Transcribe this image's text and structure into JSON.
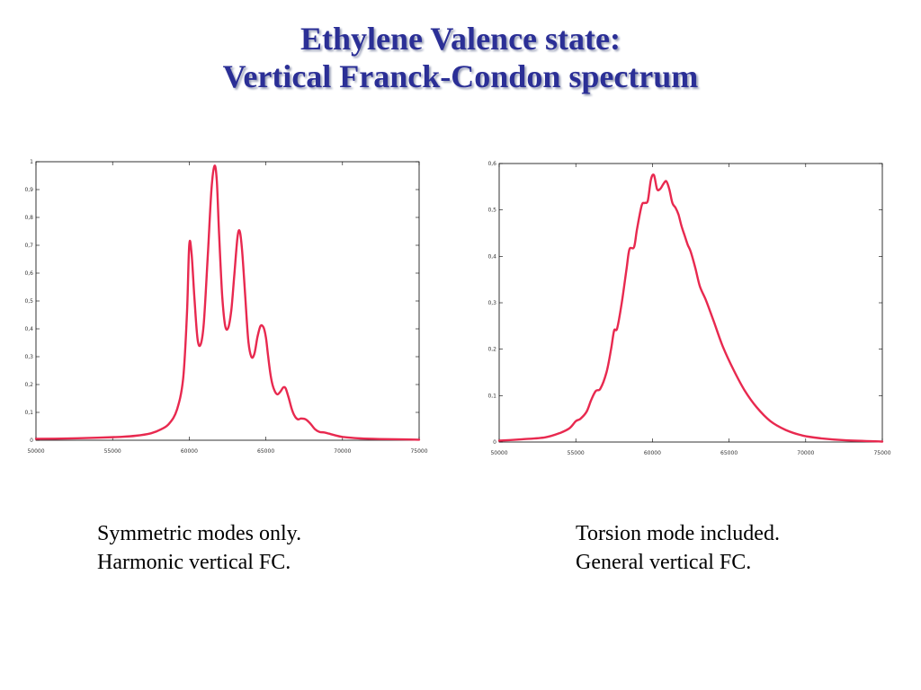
{
  "slide": {
    "title_line1": "Ethylene Valence state:",
    "title_line2": "Vertical Franck-Condon spectrum",
    "title_color": "#2b2f96",
    "captions": {
      "left_line1": "Symmetric modes only.",
      "left_line2": "Harmonic vertical FC.",
      "right_line1": "Torsion mode included.",
      "right_line2": "General vertical FC."
    }
  },
  "chart_data": [
    {
      "type": "line",
      "line_color": "#e8294f",
      "xlim": [
        50000,
        75000
      ],
      "ylim": [
        0,
        1
      ],
      "xticks": [
        50000,
        55000,
        60000,
        65000,
        70000,
        75000
      ],
      "xtick_labels": [
        "50000",
        "55000",
        "60000",
        "65000",
        "70000",
        "75000"
      ],
      "yticks": [
        0,
        0.1,
        0.2,
        0.3,
        0.4,
        0.5,
        0.6,
        0.7,
        0.8,
        0.9,
        1
      ],
      "ytick_labels": [
        "0",
        "0,1",
        "0,2",
        "0,3",
        "0,4",
        "0,5",
        "0,6",
        "0,7",
        "0,8",
        "0,9",
        "1"
      ],
      "grid": false,
      "series": [
        {
          "x": [
            50000,
            52000,
            54000,
            55500,
            56500,
            57500,
            58200,
            58700,
            59200,
            59600,
            59850,
            60000,
            60150,
            60350,
            60550,
            60750,
            60950,
            61200,
            61450,
            61650,
            61800,
            61950,
            62150,
            62350,
            62550,
            62750,
            62950,
            63150,
            63300,
            63450,
            63650,
            63850,
            64050,
            64250,
            64450,
            64650,
            64850,
            65000,
            65150,
            65350,
            65550,
            65750,
            65950,
            66150,
            66300,
            66500,
            66700,
            66900,
            67100,
            67300,
            67600,
            67900,
            68200,
            68500,
            68800,
            69100,
            69500,
            70000,
            71000,
            72000,
            73000,
            74000,
            75000
          ],
          "y": [
            0.005,
            0.006,
            0.009,
            0.012,
            0.016,
            0.025,
            0.04,
            0.06,
            0.11,
            0.22,
            0.45,
            0.7,
            0.67,
            0.5,
            0.36,
            0.345,
            0.42,
            0.65,
            0.9,
            0.985,
            0.93,
            0.74,
            0.52,
            0.41,
            0.405,
            0.47,
            0.6,
            0.73,
            0.75,
            0.68,
            0.52,
            0.36,
            0.3,
            0.31,
            0.37,
            0.41,
            0.405,
            0.37,
            0.3,
            0.22,
            0.18,
            0.165,
            0.175,
            0.19,
            0.185,
            0.15,
            0.11,
            0.085,
            0.075,
            0.078,
            0.075,
            0.06,
            0.04,
            0.03,
            0.028,
            0.024,
            0.018,
            0.012,
            0.007,
            0.005,
            0.004,
            0.003,
            0.002
          ]
        }
      ]
    },
    {
      "type": "line",
      "line_color": "#e8294f",
      "xlim": [
        50000,
        75000
      ],
      "ylim": [
        0,
        0.6
      ],
      "xticks": [
        50000,
        55000,
        60000,
        65000,
        70000,
        75000
      ],
      "xtick_labels": [
        "50000",
        "55000",
        "60000",
        "65000",
        "70000",
        "75000"
      ],
      "yticks": [
        0,
        0.1,
        0.2,
        0.3,
        0.4,
        0.5,
        0.6
      ],
      "ytick_labels": [
        "0",
        "0,1",
        "0,2",
        "0,3",
        "0,4",
        "0,5",
        "0,6"
      ],
      "grid": false,
      "series": [
        {
          "x": [
            50000,
            51500,
            53000,
            54000,
            54600,
            55000,
            55300,
            55700,
            56000,
            56300,
            56600,
            57000,
            57300,
            57500,
            57700,
            58000,
            58300,
            58500,
            58800,
            59000,
            59300,
            59500,
            59700,
            59900,
            60100,
            60300,
            60500,
            60700,
            60900,
            61100,
            61300,
            61500,
            61700,
            61900,
            62100,
            62300,
            62500,
            62800,
            63100,
            63500,
            64000,
            64600,
            65300,
            66000,
            66800,
            67700,
            68700,
            69800,
            71000,
            72500,
            75000
          ],
          "y": [
            0.003,
            0.006,
            0.01,
            0.02,
            0.03,
            0.045,
            0.05,
            0.065,
            0.09,
            0.11,
            0.115,
            0.15,
            0.2,
            0.24,
            0.245,
            0.3,
            0.37,
            0.415,
            0.42,
            0.46,
            0.51,
            0.515,
            0.52,
            0.565,
            0.575,
            0.545,
            0.545,
            0.555,
            0.562,
            0.545,
            0.515,
            0.505,
            0.49,
            0.465,
            0.445,
            0.425,
            0.41,
            0.375,
            0.335,
            0.305,
            0.26,
            0.205,
            0.155,
            0.112,
            0.075,
            0.045,
            0.026,
            0.014,
            0.008,
            0.004,
            0.001
          ]
        }
      ]
    }
  ]
}
